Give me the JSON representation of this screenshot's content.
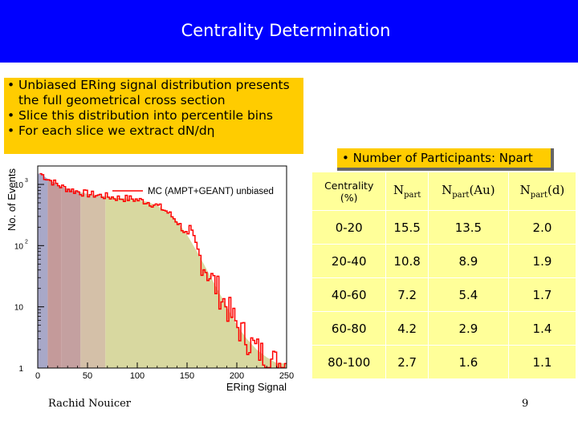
{
  "slide": {
    "title": "Centrality Determination",
    "colors": {
      "title_bg": "#0000ff",
      "box_bg": "#ffcc00",
      "table_bg": "#ffff99",
      "hist_line": "#ff0000",
      "fill": "#d8d8a0"
    }
  },
  "bullets": [
    {
      "text": "Unbiased ERing signal distribution presents"
    },
    {
      "text": "the full geometrical cross section"
    },
    {
      "text": "Slice this distribution into percentile bins"
    },
    {
      "text": "For each slice we extract dN/dη"
    }
  ],
  "npart_box": {
    "text": "Number of Participants: Npart"
  },
  "table": {
    "header": {
      "col1_line1": "Centrality",
      "col1_line2": "(%)",
      "col2_main": "N",
      "col2_sub": "part",
      "col3_main": "N",
      "col3_sub": "part",
      "col3_tail": "(Au)",
      "col4_main": "N",
      "col4_sub": "part",
      "col4_tail": "(d)"
    },
    "rows": [
      {
        "centrality": "0-20",
        "npart": "15.5",
        "npart_au": "13.5",
        "npart_d": "2.0"
      },
      {
        "centrality": "20-40",
        "npart": "10.8",
        "npart_au": "8.9",
        "npart_d": "1.9"
      },
      {
        "centrality": "40-60",
        "npart": "7.2",
        "npart_au": "5.4",
        "npart_d": "1.7"
      },
      {
        "centrality": "60-80",
        "npart": "4.2",
        "npart_au": "2.9",
        "npart_d": "1.4"
      },
      {
        "centrality": "80-100",
        "npart": "2.7",
        "npart_au": "1.6",
        "npart_d": "1.1"
      }
    ]
  },
  "chart_data": {
    "type": "area",
    "title": "",
    "xlabel": "ERing Signal",
    "ylabel": "No. of Events",
    "legend": "MC (AMPT+GEANT) unbiased",
    "xlim": [
      0,
      250
    ],
    "ylim": [
      1,
      2000
    ],
    "yscale": "log",
    "x_ticks": [
      "0",
      "50",
      "100",
      "150",
      "200",
      "250"
    ],
    "y_ticks": [
      {
        "base": "1",
        "exp": ""
      },
      {
        "base": "10",
        "exp": ""
      },
      {
        "base": "10",
        "exp": "2"
      },
      {
        "base": "10",
        "exp": "3"
      }
    ],
    "series": [
      {
        "name": "MC (AMPT+GEANT) unbiased",
        "x": [
          3,
          8,
          15,
          25,
          35,
          50,
          65,
          80,
          95,
          110,
          120,
          130,
          140,
          150,
          160,
          170,
          180,
          190,
          200,
          210,
          220,
          230,
          240
        ],
        "values": [
          1500,
          1300,
          1100,
          900,
          800,
          700,
          650,
          600,
          580,
          520,
          450,
          360,
          250,
          150,
          80,
          40,
          20,
          10,
          5,
          3,
          2,
          1.5,
          1.2
        ]
      }
    ],
    "slices": [
      {
        "from": 0,
        "to": 10
      },
      {
        "from": 10,
        "to": 24
      },
      {
        "from": 24,
        "to": 43
      },
      {
        "from": 43,
        "to": 68
      },
      {
        "from": 68,
        "to": 250
      }
    ]
  },
  "footer": {
    "author": "Rachid  Nouicer",
    "page": "9"
  }
}
